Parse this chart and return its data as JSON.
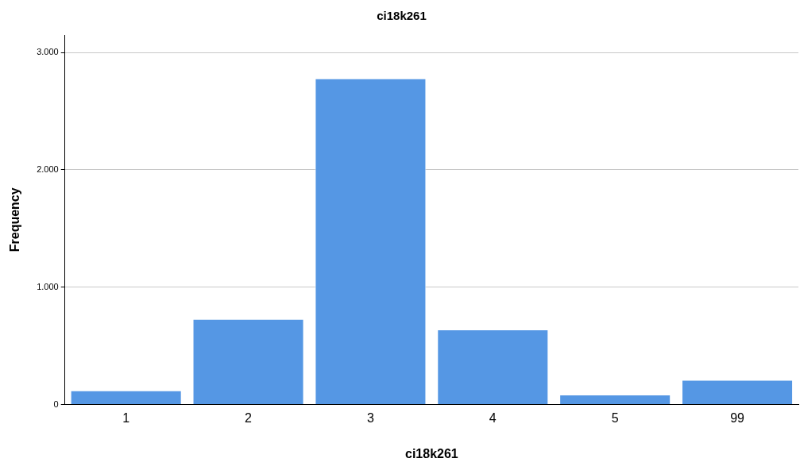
{
  "chart_data": {
    "type": "bar",
    "title": "ci18k261",
    "xlabel": "ci18k261",
    "ylabel": "Frequency",
    "categories": [
      "1",
      "2",
      "3",
      "4",
      "5",
      "99"
    ],
    "values": [
      120,
      730,
      2780,
      640,
      85,
      210
    ],
    "color": "#5597e4",
    "ylim": [
      0,
      3150
    ],
    "yticks": [
      {
        "value": 0,
        "label": "0"
      },
      {
        "value": 1000,
        "label": "1.000"
      },
      {
        "value": 2000,
        "label": "2.000"
      },
      {
        "value": 3000,
        "label": "3.000"
      }
    ],
    "grid": "y",
    "legend": false
  }
}
